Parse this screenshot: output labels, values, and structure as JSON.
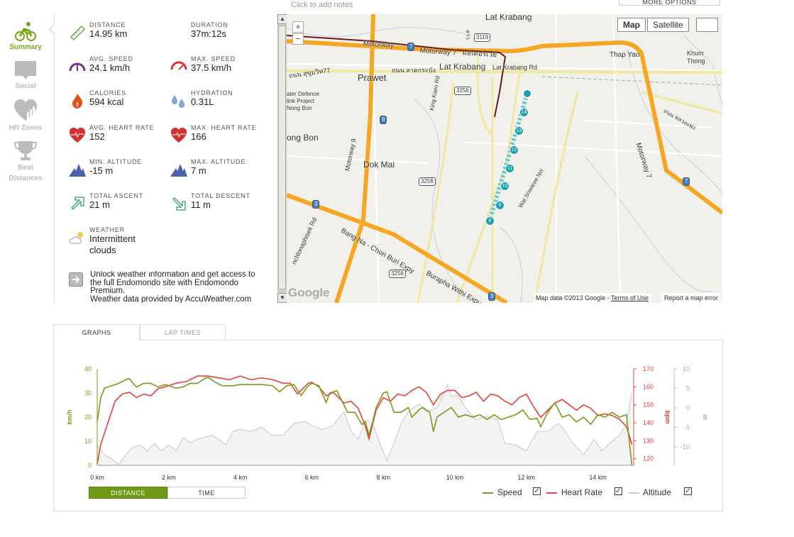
{
  "header": {
    "notes_placeholder": "Click to add notes",
    "more_options": "MORE OPTIONS"
  },
  "sidebar": {
    "items": [
      {
        "label": "Summary",
        "icon": "bike-icon",
        "active": true
      },
      {
        "label": "Social",
        "icon": "speech-bubble-icon"
      },
      {
        "label": "HR Zones",
        "icon": "heart-chart-icon"
      },
      {
        "label": "Best",
        "label2": "Distances",
        "icon": "trophy-icon"
      }
    ]
  },
  "stats": [
    {
      "label": "DISTANCE",
      "value": "14.95 km",
      "icon": "ruler-icon"
    },
    {
      "label": "DURATION",
      "value": "37m:12s",
      "icon": "none"
    },
    {
      "label": "AVG. SPEED",
      "value": "24.1 km/h",
      "icon": "speedometer-icon"
    },
    {
      "label": "MAX. SPEED",
      "value": "37.5 km/h",
      "icon": "speedometer-max-icon"
    },
    {
      "label": "CALORIES",
      "value": "594 kcal",
      "icon": "flame-icon"
    },
    {
      "label": "HYDRATION",
      "value": "0.31L",
      "icon": "water-drops-icon"
    },
    {
      "label": "AVG. HEART RATE",
      "value": "152",
      "icon": "heart-pulse-icon"
    },
    {
      "label": "MAX. HEART RATE",
      "value": "166",
      "icon": "heart-pulse-icon"
    },
    {
      "label": "MIN. ALTITUDE",
      "value": "-15 m",
      "icon": "mountains-icon"
    },
    {
      "label": "MAX. ALTITUDE",
      "value": "7 m",
      "icon": "mountains-icon"
    },
    {
      "label": "TOTAL ASCENT",
      "value": "21 m",
      "icon": "arrow-up-right-icon"
    },
    {
      "label": "TOTAL DESCENT",
      "value": "11 m",
      "icon": "arrow-down-right-icon"
    },
    {
      "label": "WEATHER",
      "value": "Intermittent clouds",
      "icon": "cloud-sun-icon"
    }
  ],
  "promo": {
    "text": "Unlock weather information and get access to the full Endomondo site with Endomondo Premium.",
    "credit": "Weather data provided by AccuWeather.com"
  },
  "map": {
    "type_map": "Map",
    "type_satellite": "Satellite",
    "zoom_in": "+",
    "zoom_out": "−",
    "attribution": "Map data ©2013 Google - ",
    "terms": "Terms of Use",
    "report": "Report a map error",
    "logo": "Google",
    "labels": {
      "lat_krabang_top": "Lat Krabang",
      "motorway": "Motorway",
      "motorway7": "Motorway 7",
      "motorway_th": "มอเตอร์เวย์",
      "thap_yao": "Thap Yao",
      "khum": "Khum",
      "thong": "Thong",
      "prawet": "Prawet",
      "lk_th": "ถนน ลาดกระบัง",
      "lat_krabang": "Lat Krabang",
      "lk_rd": "Lat Krabang Rd",
      "sukhumvit": "ถนน สุขุมวิท77",
      "water1": "ater Defence",
      "water2": "link Project",
      "water3": "Nong Bon",
      "ong_bon": "ong Bon",
      "dok_mai": "Dok Mai",
      "motorway9": "Motorway 9",
      "king_kaeo": "King Kaeo Rd",
      "wat": "Wat Sriwaree Noi",
      "motorway7b": "Motorway 7",
      "luang": "ถนน หลวงแพ่ง",
      "bangna": "Bang Na - Chon Buri Expy",
      "burapha": "Burapha Withi Expy",
      "chalong": "nchlonaphisek Rd",
      "lao": "ลาว"
    },
    "shields": {
      "s3119": "3119",
      "s3256": "3256",
      "s7": "7",
      "s9": "9",
      "s3": "3"
    },
    "route_markers": [
      "14",
      "13",
      "12",
      "11",
      "10",
      "9",
      "8"
    ]
  },
  "graphs": {
    "tabs": [
      "GRAPHS",
      "LAP TIMES"
    ],
    "toggle": [
      "DISTANCE",
      "TIME"
    ],
    "legend": [
      {
        "label": "Speed",
        "color": "#7a9a1a",
        "checked": "✓"
      },
      {
        "label": "Heart Rate",
        "color": "#e8413a",
        "checked": "✓"
      },
      {
        "label": "Altitude",
        "color": "#cccccc",
        "checked": "✓"
      }
    ]
  },
  "chart_data": {
    "type": "line",
    "xlabel": "km",
    "x_ticks": [
      "0 km",
      "2 km",
      "4 km",
      "6 km",
      "8 km",
      "10 km",
      "12 km",
      "14 km"
    ],
    "xlim": [
      0,
      15
    ],
    "axes": {
      "speed": {
        "label": "km/h",
        "ticks": [
          "0",
          "10",
          "20",
          "30",
          "40"
        ],
        "lim": [
          0,
          40
        ]
      },
      "hr": {
        "label": "bpm",
        "ticks": [
          "120",
          "130",
          "140",
          "150",
          "160",
          "170"
        ],
        "lim": [
          116.3,
          170
        ]
      },
      "alt": {
        "label": "m",
        "ticks": [
          "-10",
          "-5",
          "0",
          "5",
          "10"
        ],
        "lim": [
          -14.7,
          10
        ]
      }
    },
    "series": [
      {
        "name": "Speed",
        "axis": "speed",
        "x": [
          0,
          0.1,
          0.2,
          0.4,
          0.6,
          0.8,
          0.9,
          1.0,
          1.1,
          1.3,
          1.5,
          1.7,
          1.9,
          2.0,
          2.2,
          2.4,
          2.6,
          2.8,
          3.0,
          3.1,
          3.3,
          3.5,
          3.8,
          4.0,
          4.3,
          4.6,
          4.9,
          5.1,
          5.3,
          5.5,
          5.7,
          5.9,
          6.0,
          6.2,
          6.4,
          6.5,
          6.7,
          6.8,
          7.0,
          7.2,
          7.4,
          7.5,
          7.6,
          7.7,
          7.8,
          8.0,
          8.1,
          8.3,
          8.5,
          8.7,
          8.8,
          9.0,
          9.1,
          9.3,
          9.4,
          9.5,
          9.7,
          9.9,
          10.1,
          10.3,
          10.5,
          10.7,
          10.9,
          11.1,
          11.3,
          11.5,
          11.7,
          11.9,
          12.1,
          12.3,
          12.4,
          12.6,
          12.8,
          13.0,
          13.2,
          13.4,
          13.6,
          13.8,
          14.0,
          14.2,
          14.4,
          14.6,
          14.8,
          14.95
        ],
        "values": [
          18,
          28,
          32,
          33,
          34,
          35.5,
          36,
          34,
          32.5,
          34,
          34,
          32.5,
          33.5,
          33,
          32,
          32.5,
          34,
          34,
          36,
          36.5,
          34.5,
          33,
          33,
          33.5,
          33.5,
          33.5,
          33,
          30.5,
          33,
          33.5,
          29,
          33,
          34,
          33,
          26,
          30,
          31,
          28,
          22,
          22,
          17,
          18,
          12.5,
          18,
          24,
          30,
          30.5,
          22,
          22,
          24,
          20,
          23,
          24,
          22,
          14,
          20,
          22,
          24,
          20,
          21,
          20,
          21,
          19,
          21,
          19,
          20,
          21,
          23,
          19,
          19.5,
          16,
          22,
          26,
          20,
          21,
          18,
          20,
          17,
          21,
          20,
          22,
          20,
          21,
          0
        ]
      },
      {
        "name": "Heart Rate",
        "axis": "hr",
        "x": [
          0,
          0.1,
          0.3,
          0.5,
          0.7,
          0.9,
          1.1,
          1.3,
          1.5,
          1.7,
          1.9,
          2.2,
          2.5,
          2.8,
          3.1,
          3.4,
          3.7,
          4.0,
          4.3,
          4.6,
          4.9,
          5.2,
          5.4,
          5.6,
          5.9,
          6.0,
          6.2,
          6.4,
          6.6,
          6.9,
          7.1,
          7.3,
          7.5,
          7.6,
          7.8,
          8.0,
          8.2,
          8.4,
          8.6,
          8.8,
          9.0,
          9.2,
          9.4,
          9.6,
          9.8,
          10.0,
          10.2,
          10.4,
          10.6,
          10.8,
          11.0,
          11.2,
          11.4,
          11.6,
          11.8,
          12.0,
          12.2,
          12.4,
          12.6,
          12.8,
          13.0,
          13.2,
          13.4,
          13.6,
          13.8,
          14.0,
          14.2,
          14.4,
          14.6,
          14.8,
          14.95
        ],
        "values": [
          117,
          128,
          140,
          152,
          156,
          157,
          154,
          156,
          155,
          159,
          160,
          162,
          163,
          166,
          166,
          165,
          164,
          166,
          164,
          165,
          164,
          162,
          162,
          156,
          162,
          162.5,
          160,
          155,
          157,
          151,
          152,
          148,
          138,
          131,
          147,
          154,
          152,
          156,
          155,
          158,
          160,
          157,
          150,
          156,
          158,
          158,
          154,
          155,
          157,
          152,
          156,
          155,
          152,
          150,
          154,
          156,
          149,
          143,
          147,
          151,
          153,
          150,
          147,
          150,
          148,
          144,
          145,
          144,
          142,
          138,
          128
        ]
      },
      {
        "name": "Altitude",
        "axis": "alt",
        "x": [
          0,
          0.2,
          0.4,
          0.6,
          0.8,
          1.0,
          1.2,
          1.4,
          1.6,
          1.8,
          2.0,
          2.2,
          2.4,
          2.6,
          2.8,
          3.0,
          3.2,
          3.4,
          3.6,
          3.8,
          4.0,
          4.3,
          4.6,
          4.9,
          5.2,
          5.5,
          5.8,
          6.0,
          6.3,
          6.6,
          6.9,
          7.1,
          7.3,
          7.5,
          7.7,
          7.9,
          8.1,
          8.3,
          8.5,
          8.7,
          9.0,
          9.2,
          9.5,
          9.8,
          9.9,
          10.1,
          10.3,
          10.6,
          10.9,
          11.2,
          11.4,
          11.7,
          12.0,
          12.3,
          12.6,
          12.9,
          13.0,
          13.3,
          13.6,
          13.9,
          14.1,
          14.4,
          14.6,
          14.8,
          14.95
        ],
        "values": [
          -9.5,
          -12,
          -13,
          -14.5,
          -12,
          -10,
          -9.5,
          -11,
          -9,
          -11,
          -9.5,
          -11,
          -7.5,
          -9,
          -8,
          -7.5,
          -7,
          -8,
          -9.5,
          -6,
          -5.5,
          -6,
          -5,
          -7,
          -7,
          -4,
          -3.5,
          -4.5,
          -5.5,
          -4.5,
          -1,
          -6,
          -8,
          -3,
          -4,
          -9,
          -13.5,
          -9,
          -4,
          -1,
          1,
          -1,
          0,
          6,
          3,
          3,
          0,
          -3,
          -2,
          -3,
          -9,
          -9.5,
          -11,
          -6,
          -6,
          -4,
          -5,
          -9,
          -12,
          -8,
          -11,
          -8.5,
          -7,
          -4,
          4
        ]
      }
    ]
  }
}
